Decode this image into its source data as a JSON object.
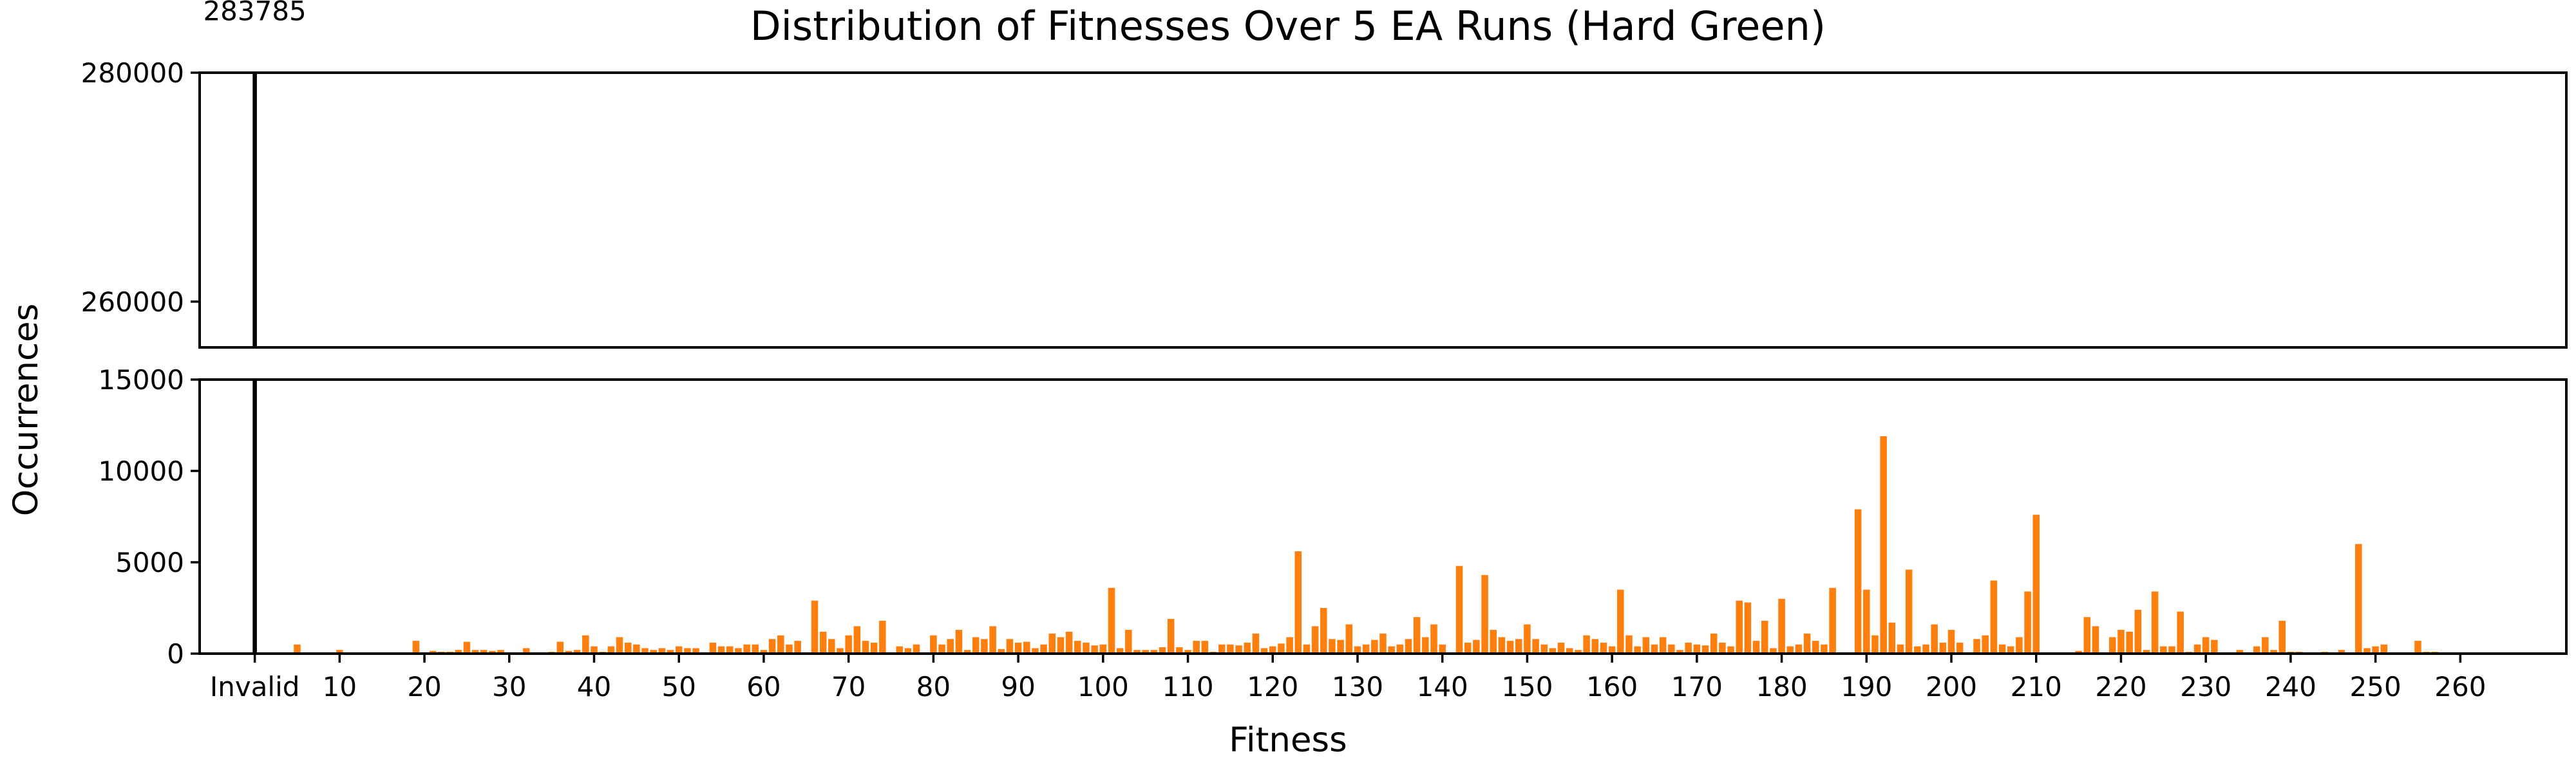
{
  "chart_data": {
    "type": "bar",
    "title": "Distribution of Fitnesses Over 5 EA Runs (Hard Green)",
    "xlabel": "Fitness",
    "ylabel": "Occurrences",
    "broken_y_axis": true,
    "panels": {
      "upper": {
        "ylim": [
          256000,
          280000
        ],
        "yticks": [
          "260000",
          "280000"
        ]
      },
      "lower": {
        "ylim": [
          0,
          15000
        ],
        "yticks": [
          "0",
          "5000",
          "10000",
          "15000"
        ]
      }
    },
    "xlim": [
      -6.5,
      272.5
    ],
    "xticks": [
      {
        "x": 0,
        "label": "Invalid"
      },
      {
        "x": 10,
        "label": "10"
      },
      {
        "x": 20,
        "label": "20"
      },
      {
        "x": 30,
        "label": "30"
      },
      {
        "x": 40,
        "label": "40"
      },
      {
        "x": 50,
        "label": "50"
      },
      {
        "x": 60,
        "label": "60"
      },
      {
        "x": 70,
        "label": "70"
      },
      {
        "x": 80,
        "label": "80"
      },
      {
        "x": 90,
        "label": "90"
      },
      {
        "x": 100,
        "label": "100"
      },
      {
        "x": 110,
        "label": "110"
      },
      {
        "x": 120,
        "label": "120"
      },
      {
        "x": 130,
        "label": "130"
      },
      {
        "x": 140,
        "label": "140"
      },
      {
        "x": 150,
        "label": "150"
      },
      {
        "x": 160,
        "label": "160"
      },
      {
        "x": 170,
        "label": "170"
      },
      {
        "x": 180,
        "label": "180"
      },
      {
        "x": 190,
        "label": "190"
      },
      {
        "x": 200,
        "label": "200"
      },
      {
        "x": 210,
        "label": "210"
      },
      {
        "x": 220,
        "label": "220"
      },
      {
        "x": 230,
        "label": "230"
      },
      {
        "x": 240,
        "label": "240"
      },
      {
        "x": 250,
        "label": "250"
      },
      {
        "x": 260,
        "label": "260"
      }
    ],
    "invalid_bar": {
      "category": "Invalid",
      "value": 283785,
      "label": "283785",
      "color": "#000000"
    },
    "series_color": "#ff7f0e",
    "fitness_start": 1,
    "values": [
      0,
      0,
      0,
      0,
      500,
      0,
      0,
      0,
      0,
      200,
      0,
      0,
      0,
      0,
      60,
      0,
      0,
      0,
      700,
      0,
      150,
      100,
      100,
      200,
      650,
      200,
      200,
      150,
      200,
      0,
      0,
      300,
      0,
      0,
      100,
      650,
      150,
      200,
      1000,
      400,
      100,
      400,
      900,
      600,
      500,
      300,
      200,
      300,
      200,
      400,
      300,
      300,
      0,
      600,
      400,
      400,
      300,
      500,
      500,
      200,
      800,
      1000,
      500,
      700,
      0,
      2900,
      1200,
      800,
      300,
      1000,
      1500,
      700,
      600,
      1800,
      0,
      400,
      300,
      500,
      0,
      1000,
      500,
      800,
      1300,
      200,
      900,
      800,
      1500,
      250,
      800,
      600,
      650,
      300,
      500,
      1100,
      900,
      1200,
      700,
      600,
      450,
      500,
      3600,
      300,
      1300,
      200,
      200,
      200,
      350,
      1900,
      350,
      200,
      700,
      700,
      100,
      500,
      500,
      450,
      600,
      1100,
      300,
      400,
      550,
      900,
      5600,
      500,
      1500,
      2500,
      800,
      750,
      1600,
      400,
      500,
      750,
      1100,
      400,
      500,
      800,
      2000,
      900,
      1600,
      500,
      0,
      4800,
      600,
      750,
      4300,
      1300,
      900,
      700,
      800,
      1600,
      800,
      500,
      300,
      600,
      300,
      200,
      1000,
      800,
      600,
      400,
      3500,
      1000,
      400,
      900,
      500,
      900,
      500,
      200,
      600,
      500,
      450,
      1100,
      600,
      400,
      2900,
      2800,
      700,
      1800,
      300,
      3000,
      400,
      500,
      1100,
      700,
      500,
      3600,
      0,
      0,
      7900,
      3500,
      1000,
      11900,
      1700,
      500,
      4600,
      400,
      500,
      1600,
      600,
      1300,
      600,
      0,
      800,
      1000,
      4000,
      500,
      400,
      900,
      3400,
      7600,
      0,
      0,
      0,
      0,
      150,
      2000,
      1500,
      0,
      900,
      1300,
      1200,
      2400,
      200,
      3400,
      400,
      400,
      2300,
      100,
      500,
      900,
      750,
      0,
      50,
      200,
      50,
      400,
      900,
      200,
      1800,
      100,
      100,
      0,
      0,
      100,
      50,
      200,
      50,
      6000,
      300,
      400,
      500,
      0,
      0,
      0,
      700,
      100,
      100,
      50,
      30
    ]
  }
}
